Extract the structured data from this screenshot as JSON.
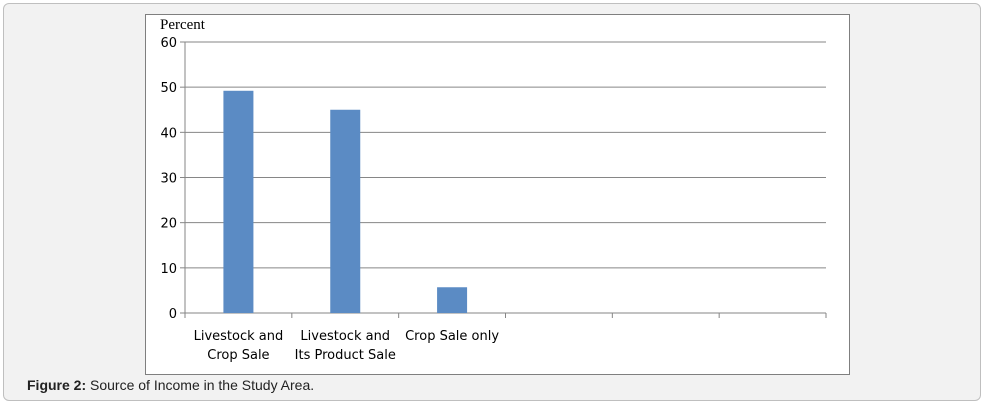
{
  "chart_data": {
    "type": "bar",
    "ylabel": "Percent",
    "ylim": [
      0,
      60
    ],
    "yticks": [
      0,
      10,
      20,
      30,
      40,
      50,
      60
    ],
    "grid": true,
    "categories": [
      [
        "Livestock and",
        "Crop Sale"
      ],
      [
        "Livestock and",
        "Its Product Sale"
      ],
      [
        "Crop Sale only"
      ],
      [
        ""
      ],
      [
        ""
      ],
      [
        ""
      ]
    ],
    "values": [
      49.2,
      45,
      5.7,
      null,
      null,
      null
    ],
    "bar_color": "#5b8bc4"
  },
  "caption": {
    "label": "Figure 2:",
    "text": " Source of Income in the Study Area."
  }
}
